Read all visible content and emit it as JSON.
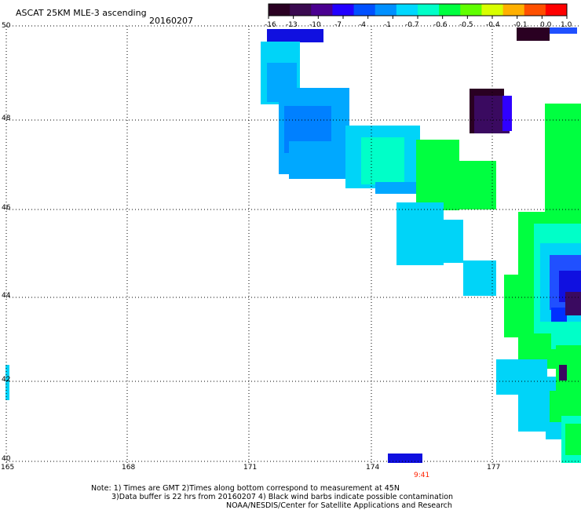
{
  "header": {
    "title": "ASCAT 25KM MLE-3 ascending",
    "date": "20160207"
  },
  "colorbar": {
    "labels": [
      "-16",
      "-13",
      "-10",
      "-7",
      "-4",
      "-1",
      "-0.7",
      "-0.6",
      "-0.5",
      "-0.4",
      "-0.1",
      "0.0",
      "1.0"
    ],
    "colors": [
      "#2a0022",
      "#3a0a50",
      "#4a0090",
      "#2200ff",
      "#0050ff",
      "#0090ff",
      "#00d8ff",
      "#00ffc8",
      "#00ff40",
      "#60ff00",
      "#d8ff00",
      "#ffb000",
      "#ff5000",
      "#ff0000"
    ]
  },
  "axes": {
    "lat_labels": [
      "50",
      "48",
      "46",
      "44",
      "42",
      "40"
    ],
    "lon_labels": [
      "165",
      "168",
      "171",
      "174",
      "177"
    ]
  },
  "time_label": "9:41",
  "notes": {
    "line1": "Note: 1) Times are GMT 2)Times along bottom correspond to measurement at 45N",
    "line2": "3)Data buffer is 22 hrs from 20160207 4) Black wind barbs indicate possible contamination",
    "line3": "NOAA/NESDIS/Center for Satellite Applications and Research"
  }
}
